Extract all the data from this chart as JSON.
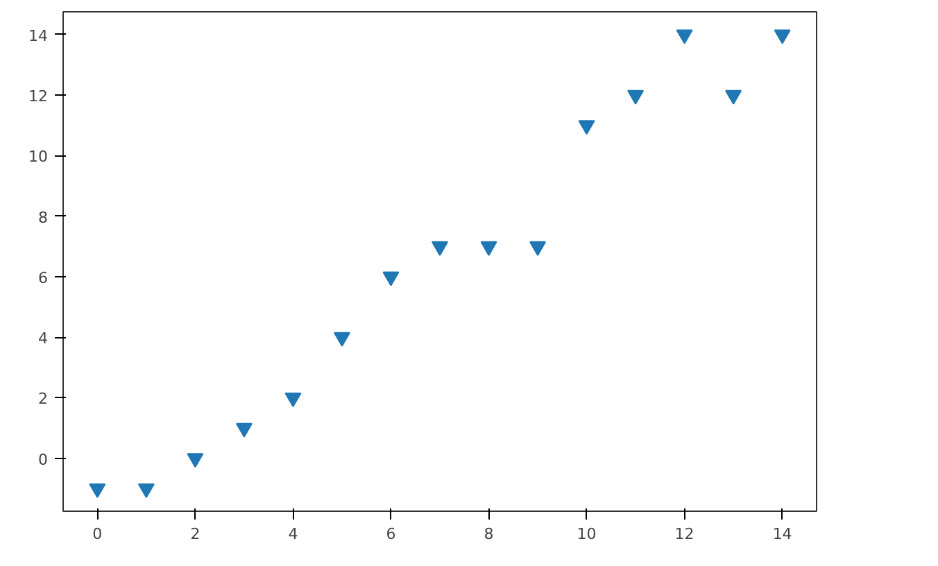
{
  "chart_data": {
    "type": "scatter",
    "x": [
      0,
      1,
      2,
      3,
      4,
      5,
      6,
      7,
      8,
      9,
      10,
      11,
      12,
      13,
      14
    ],
    "values": [
      -1,
      -1,
      0,
      1,
      2,
      4,
      6,
      7,
      7,
      7,
      11,
      12,
      14,
      12,
      14
    ],
    "color": "#1f77b4",
    "marker": "triangle_down",
    "xlim": [
      -0.7,
      14.7
    ],
    "ylim": [
      -1.75,
      14.75
    ],
    "xticks": [
      0,
      2,
      4,
      6,
      8,
      10,
      12,
      14
    ],
    "yticks": [
      0,
      2,
      4,
      6,
      8,
      10,
      12,
      14
    ],
    "grid": false
  }
}
